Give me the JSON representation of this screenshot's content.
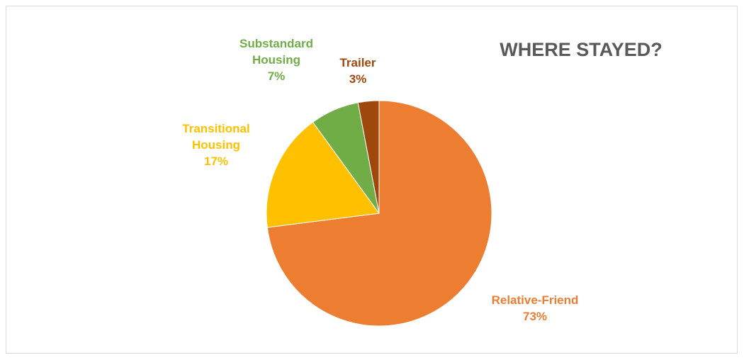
{
  "chart_data": {
    "type": "pie",
    "title": "WHERE STAYED?",
    "categories": [
      "Relative-Friend",
      "Transitional Housing",
      "Substandard Housing",
      "Trailer"
    ],
    "values": [
      73,
      17,
      7,
      3
    ],
    "value_labels": [
      "73%",
      "17%",
      "7%",
      "3%"
    ],
    "colors": [
      "#ed7d31",
      "#ffc000",
      "#70ad47",
      "#9e480e"
    ]
  }
}
